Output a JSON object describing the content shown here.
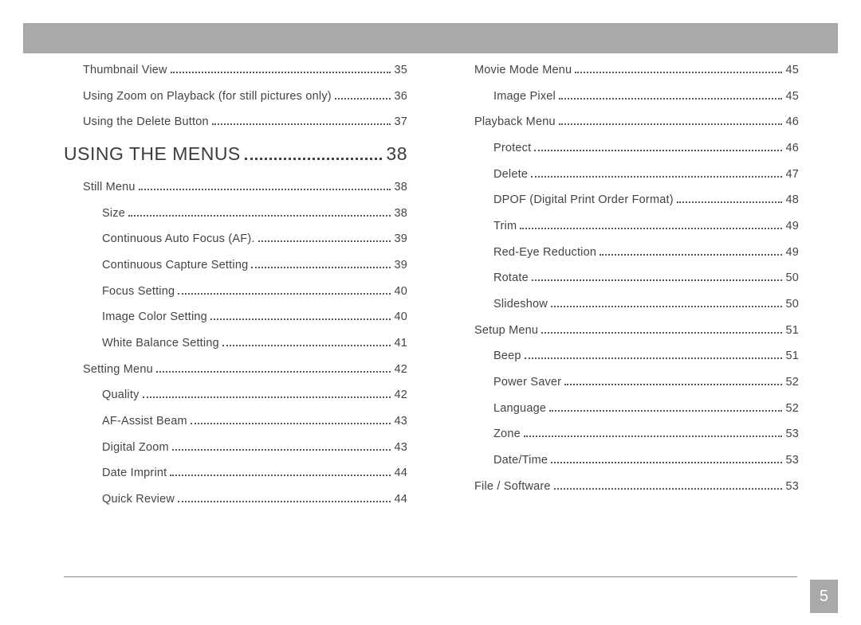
{
  "page_number": "5",
  "colors": {
    "bar": "#a8a9ab",
    "text": "#444444",
    "heading": "#3c3c3c"
  },
  "left_column": [
    {
      "type": "item",
      "indent": 1,
      "label": "Thumbnail View",
      "page": "35"
    },
    {
      "type": "item",
      "indent": 1,
      "label": "Using Zoom on Playback (for still pictures only)",
      "page": "36"
    },
    {
      "type": "item",
      "indent": 1,
      "label": "Using the Delete Button",
      "page": "37"
    },
    {
      "type": "heading",
      "label": "USING THE MENUS",
      "page": "38"
    },
    {
      "type": "item",
      "indent": 1,
      "label": "Still Menu",
      "page": "38"
    },
    {
      "type": "item",
      "indent": 2,
      "label": "Size",
      "page": "38"
    },
    {
      "type": "item",
      "indent": 2,
      "label": "Continuous Auto Focus (AF).",
      "page": "39"
    },
    {
      "type": "item",
      "indent": 2,
      "label": "Continuous Capture Setting",
      "page": "39"
    },
    {
      "type": "item",
      "indent": 2,
      "label": "Focus Setting",
      "page": "40"
    },
    {
      "type": "item",
      "indent": 2,
      "label": "Image Color Setting",
      "page": "40"
    },
    {
      "type": "item",
      "indent": 2,
      "label": "White Balance Setting",
      "page": "41"
    },
    {
      "type": "item",
      "indent": 1,
      "label": "Setting Menu",
      "page": "42"
    },
    {
      "type": "item",
      "indent": 2,
      "label": "Quality",
      "page": "42"
    },
    {
      "type": "item",
      "indent": 2,
      "label": "AF-Assist Beam",
      "page": "43"
    },
    {
      "type": "item",
      "indent": 2,
      "label": "Digital Zoom",
      "page": "43"
    },
    {
      "type": "item",
      "indent": 2,
      "label": "Date Imprint",
      "page": "44"
    },
    {
      "type": "item",
      "indent": 2,
      "label": "Quick Review",
      "page": "44"
    }
  ],
  "right_column": [
    {
      "type": "item",
      "indent": 1,
      "label": "Movie Mode Menu",
      "page": "45"
    },
    {
      "type": "item",
      "indent": 2,
      "label": "Image Pixel",
      "page": "45"
    },
    {
      "type": "item",
      "indent": 1,
      "label": "Playback Menu",
      "page": "46"
    },
    {
      "type": "item",
      "indent": 2,
      "label": "Protect",
      "page": "46"
    },
    {
      "type": "item",
      "indent": 2,
      "label": "Delete",
      "page": "47"
    },
    {
      "type": "item",
      "indent": 2,
      "label": "DPOF (Digital Print Order Format)",
      "page": "48"
    },
    {
      "type": "item",
      "indent": 2,
      "label": "Trim",
      "page": "49"
    },
    {
      "type": "item",
      "indent": 2,
      "label": "Red-Eye Reduction",
      "page": "49"
    },
    {
      "type": "item",
      "indent": 2,
      "label": "Rotate",
      "page": "50"
    },
    {
      "type": "item",
      "indent": 2,
      "label": "Slideshow",
      "page": "50"
    },
    {
      "type": "item",
      "indent": 1,
      "label": "Setup Menu",
      "page": "51"
    },
    {
      "type": "item",
      "indent": 2,
      "label": "Beep",
      "page": "51"
    },
    {
      "type": "item",
      "indent": 2,
      "label": "Power Saver",
      "page": "52"
    },
    {
      "type": "item",
      "indent": 2,
      "label": "Language",
      "page": "52"
    },
    {
      "type": "item",
      "indent": 2,
      "label": "Zone",
      "page": "53"
    },
    {
      "type": "item",
      "indent": 2,
      "label": "Date/Time",
      "page": "53"
    },
    {
      "type": "item",
      "indent": 1,
      "label": "File / Software",
      "page": "53"
    }
  ]
}
